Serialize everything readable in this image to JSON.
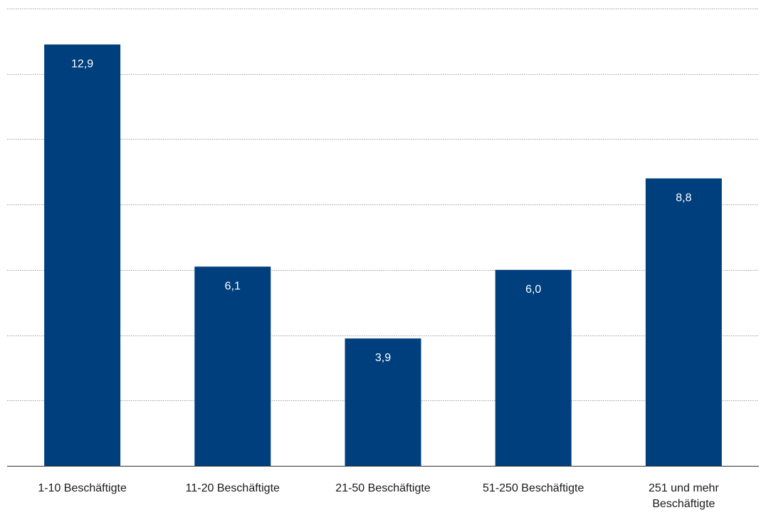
{
  "chart_data": {
    "type": "bar",
    "categories": [
      "1-10 Beschäftigte",
      "11-20 Beschäftigte",
      "21-50 Beschäftigte",
      "51-250 Beschäftigte",
      "251 und mehr Beschäftigte"
    ],
    "category_label_lines": [
      [
        "1-10 Beschäftigte"
      ],
      [
        "11-20 Beschäftigte"
      ],
      [
        "21-50 Beschäftigte"
      ],
      [
        "51-250 Beschäftigte"
      ],
      [
        "251 und mehr",
        "Beschäftigte"
      ]
    ],
    "values": [
      12.9,
      6.1,
      3.9,
      6.0,
      8.8
    ],
    "data_labels": [
      "12,9",
      "6,1",
      "3,9",
      "6,0",
      "8,8"
    ],
    "ylim": [
      0,
      14
    ],
    "grid": true,
    "gridline_values": [
      2,
      4,
      6,
      8,
      10,
      12,
      14
    ],
    "bar_color": "#003f7d",
    "label_color": "#ffffff",
    "grid_color": "#a0a0a0",
    "axis_color": "#333333",
    "text_color": "#1a1a1a"
  }
}
